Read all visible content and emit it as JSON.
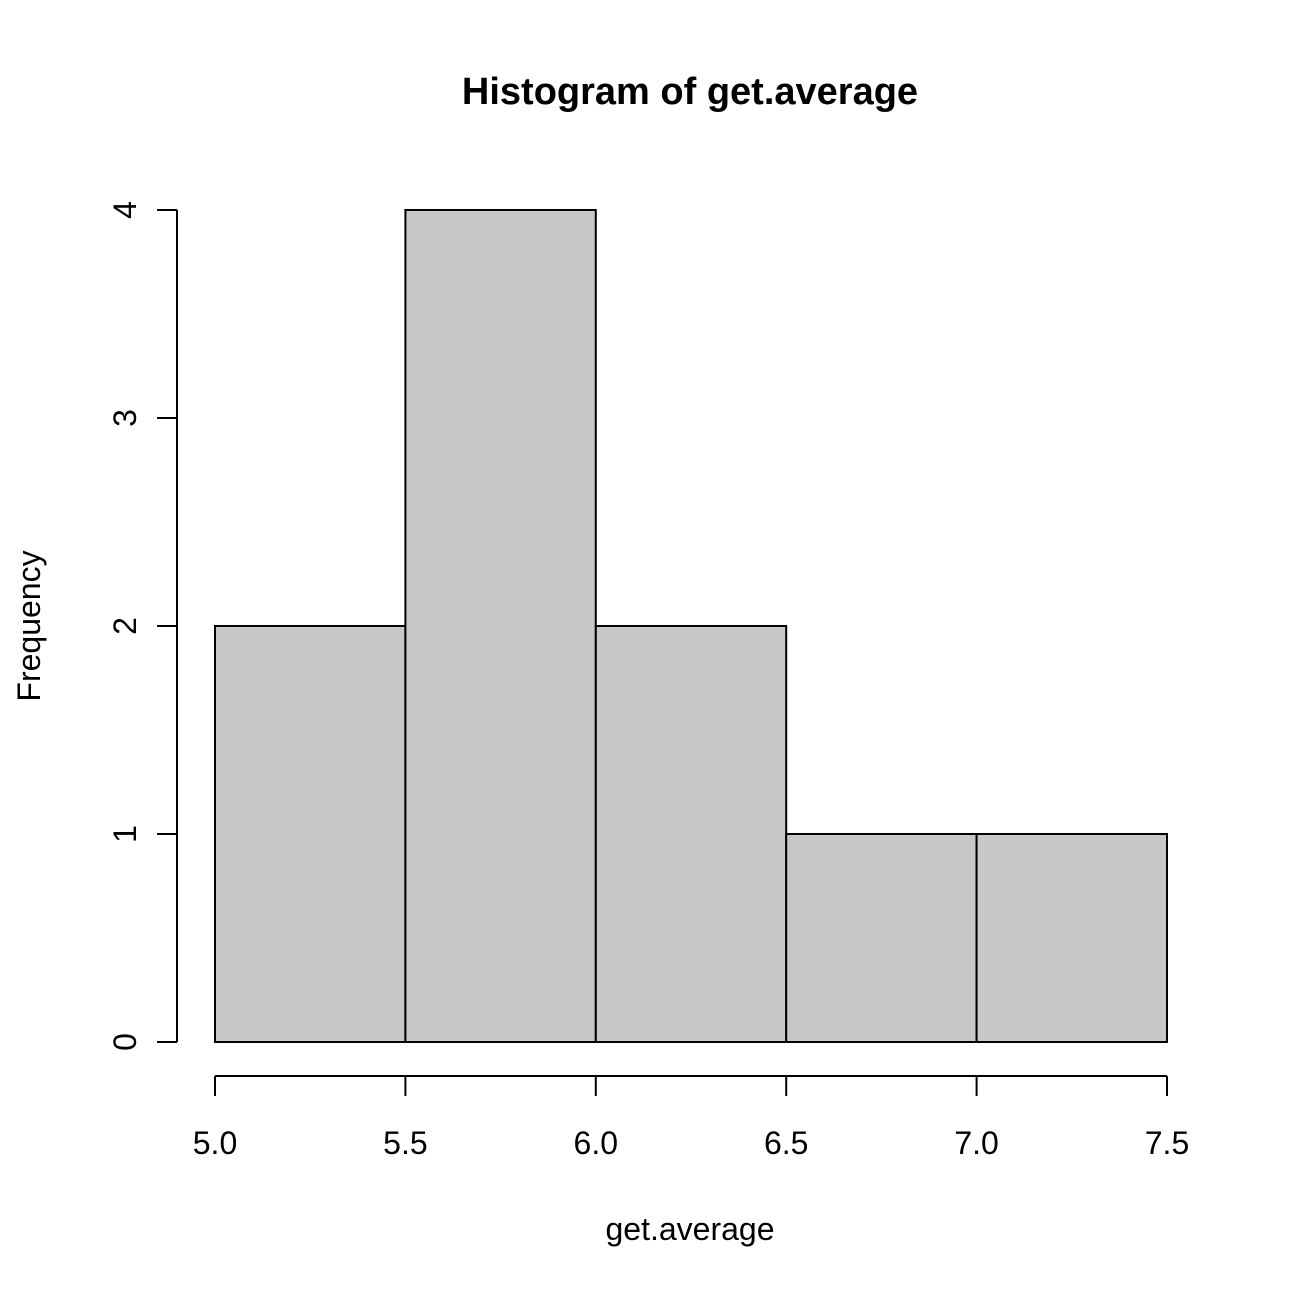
{
  "chart_data": {
    "type": "bar",
    "title": "Histogram of get.average",
    "xlabel": "get.average",
    "ylabel": "Frequency",
    "bins": [
      {
        "start": 5.0,
        "end": 5.5,
        "count": 2
      },
      {
        "start": 5.5,
        "end": 6.0,
        "count": 4
      },
      {
        "start": 6.0,
        "end": 6.5,
        "count": 2
      },
      {
        "start": 6.5,
        "end": 7.0,
        "count": 1
      },
      {
        "start": 7.0,
        "end": 7.5,
        "count": 1
      }
    ],
    "xlim": [
      5.0,
      7.5
    ],
    "ylim": [
      0,
      4
    ],
    "x_ticks": [
      "5.0",
      "5.5",
      "6.0",
      "6.5",
      "7.0",
      "7.5"
    ],
    "y_ticks": [
      "0",
      "1",
      "2",
      "3",
      "4"
    ],
    "grid": false,
    "legend": "none",
    "bar_color": "#c8c8c8",
    "edge_color": "#000000"
  }
}
